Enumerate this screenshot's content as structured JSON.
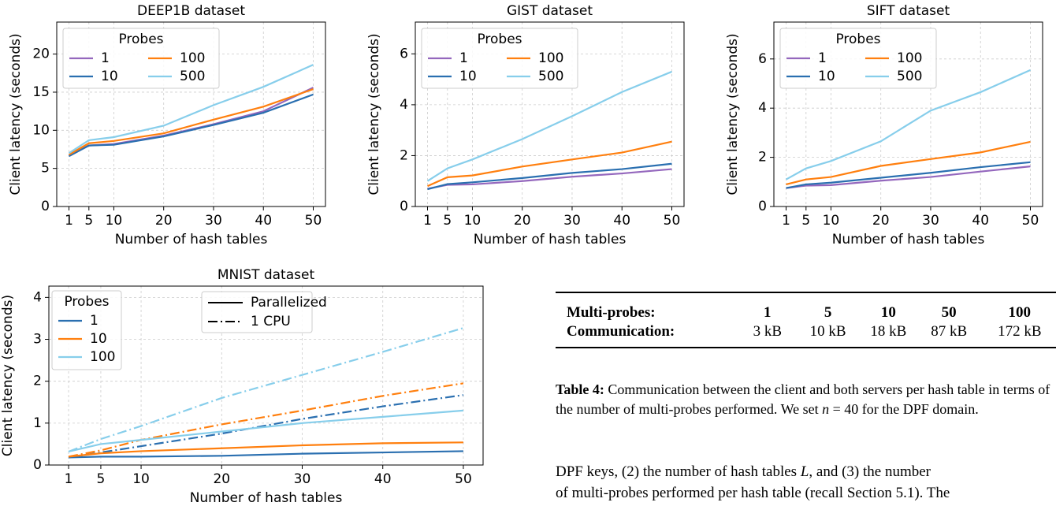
{
  "chart_data": [
    {
      "type": "line",
      "title": "DEEP1B dataset",
      "xlabel": "Number of hash tables",
      "ylabel": "Client latency (seconds)",
      "x": [
        1,
        5,
        10,
        20,
        30,
        40,
        50
      ],
      "xlim": [
        -1.45,
        52.45
      ],
      "xticks": [
        1,
        5,
        10,
        20,
        30,
        40,
        50
      ],
      "ylim": [
        0,
        24.2
      ],
      "yticks": [
        0,
        5,
        10,
        15,
        20
      ],
      "grid": true,
      "legend_title": "Probes",
      "series": [
        {
          "name": "1",
          "color": "#9467bd",
          "values": [
            6.7,
            8.0,
            8.2,
            9.3,
            10.8,
            12.5,
            15.6
          ]
        },
        {
          "name": "10",
          "color": "#2a6fb0",
          "values": [
            6.6,
            8.0,
            8.1,
            9.2,
            10.7,
            12.3,
            14.7
          ]
        },
        {
          "name": "100",
          "color": "#ff7f0e",
          "values": [
            6.8,
            8.3,
            8.6,
            9.6,
            11.4,
            13.1,
            15.4
          ]
        },
        {
          "name": "500",
          "color": "#87ceeb",
          "values": [
            7.0,
            8.7,
            9.1,
            10.6,
            13.3,
            15.7,
            18.6
          ]
        }
      ]
    },
    {
      "type": "line",
      "title": "GIST dataset",
      "xlabel": "Number of hash tables",
      "ylabel": "Client latency (seconds)",
      "x": [
        1,
        5,
        10,
        20,
        30,
        40,
        50
      ],
      "xlim": [
        -1.45,
        52.45
      ],
      "xticks": [
        1,
        5,
        10,
        20,
        30,
        40,
        50
      ],
      "ylim": [
        0,
        7.25
      ],
      "yticks": [
        0,
        2,
        4,
        6
      ],
      "grid": true,
      "legend_title": "Probes",
      "series": [
        {
          "name": "1",
          "color": "#9467bd",
          "values": [
            0.7,
            0.85,
            0.87,
            1.0,
            1.17,
            1.3,
            1.47
          ]
        },
        {
          "name": "10",
          "color": "#2a6fb0",
          "values": [
            0.68,
            0.88,
            0.95,
            1.12,
            1.32,
            1.47,
            1.68
          ]
        },
        {
          "name": "100",
          "color": "#ff7f0e",
          "values": [
            0.8,
            1.15,
            1.22,
            1.57,
            1.85,
            2.12,
            2.55
          ]
        },
        {
          "name": "500",
          "color": "#87ceeb",
          "values": [
            1.0,
            1.5,
            1.85,
            2.65,
            3.55,
            4.5,
            5.3
          ]
        }
      ]
    },
    {
      "type": "line",
      "title": "SIFT dataset",
      "xlabel": "Number of hash tables",
      "ylabel": "Client latency (seconds)",
      "x": [
        1,
        5,
        10,
        20,
        30,
        40,
        50
      ],
      "xlim": [
        -1.45,
        52.45
      ],
      "xticks": [
        1,
        5,
        10,
        20,
        30,
        40,
        50
      ],
      "ylim": [
        0,
        7.5
      ],
      "yticks": [
        0,
        2,
        4,
        6
      ],
      "grid": true,
      "legend_title": "Probes",
      "series": [
        {
          "name": "1",
          "color": "#9467bd",
          "values": [
            0.75,
            0.85,
            0.87,
            1.05,
            1.2,
            1.42,
            1.63
          ]
        },
        {
          "name": "10",
          "color": "#2a6fb0",
          "values": [
            0.75,
            0.9,
            0.97,
            1.17,
            1.37,
            1.6,
            1.8
          ]
        },
        {
          "name": "100",
          "color": "#ff7f0e",
          "values": [
            0.9,
            1.1,
            1.2,
            1.65,
            1.93,
            2.2,
            2.63
          ]
        },
        {
          "name": "500",
          "color": "#87ceeb",
          "values": [
            1.1,
            1.55,
            1.85,
            2.65,
            3.9,
            4.65,
            5.55
          ]
        }
      ]
    },
    {
      "type": "line",
      "title": "MNIST dataset",
      "xlabel": "Number of hash tables",
      "ylabel": "Client latency (seconds)",
      "x": [
        1,
        5,
        10,
        20,
        30,
        40,
        50
      ],
      "xlim": [
        -1.45,
        52.45
      ],
      "xticks": [
        1,
        5,
        10,
        20,
        30,
        40,
        50
      ],
      "ylim": [
        0,
        4.27
      ],
      "yticks": [
        0,
        1,
        2,
        3,
        4
      ],
      "grid": true,
      "legend_title": "Probes",
      "style_legend": [
        "Parallelized",
        "1 CPU"
      ],
      "series": [
        {
          "name": "1",
          "color": "#2a6fb0",
          "values": [
            0.18,
            0.2,
            0.2,
            0.22,
            0.27,
            0.3,
            0.33
          ],
          "values_1cpu": [
            0.18,
            0.3,
            0.45,
            0.75,
            1.1,
            1.4,
            1.67
          ]
        },
        {
          "name": "10",
          "color": "#ff7f0e",
          "values": [
            0.2,
            0.28,
            0.33,
            0.4,
            0.47,
            0.52,
            0.54
          ],
          "values_1cpu": [
            0.2,
            0.35,
            0.6,
            0.97,
            1.3,
            1.65,
            1.95
          ]
        },
        {
          "name": "100",
          "color": "#87ceeb",
          "values": [
            0.32,
            0.5,
            0.6,
            0.8,
            1.0,
            1.15,
            1.3
          ],
          "values_1cpu": [
            0.32,
            0.62,
            0.93,
            1.6,
            2.15,
            2.7,
            3.27
          ]
        }
      ]
    }
  ],
  "table": {
    "rows": [
      [
        "Multi-probes:",
        "1",
        "5",
        "10",
        "50",
        "100"
      ],
      [
        "Communication:",
        "3 kB",
        "10 kB",
        "18 kB",
        "87 kB",
        "172 kB"
      ]
    ]
  },
  "caption": {
    "label": "Table 4:",
    "text": "Communication between the client and both servers per hash table in terms of the number of multi-probes performed. We set",
    "var": "n",
    "rest": "= 40 for the DPF domain."
  },
  "body": {
    "line1_a": "DPF keys, (2) the number of hash tables",
    "line1_var": "L",
    "line1_b": ", and (3) the number",
    "line2": "of multi-probes performed per hash table (recall Section 5.1). The"
  }
}
